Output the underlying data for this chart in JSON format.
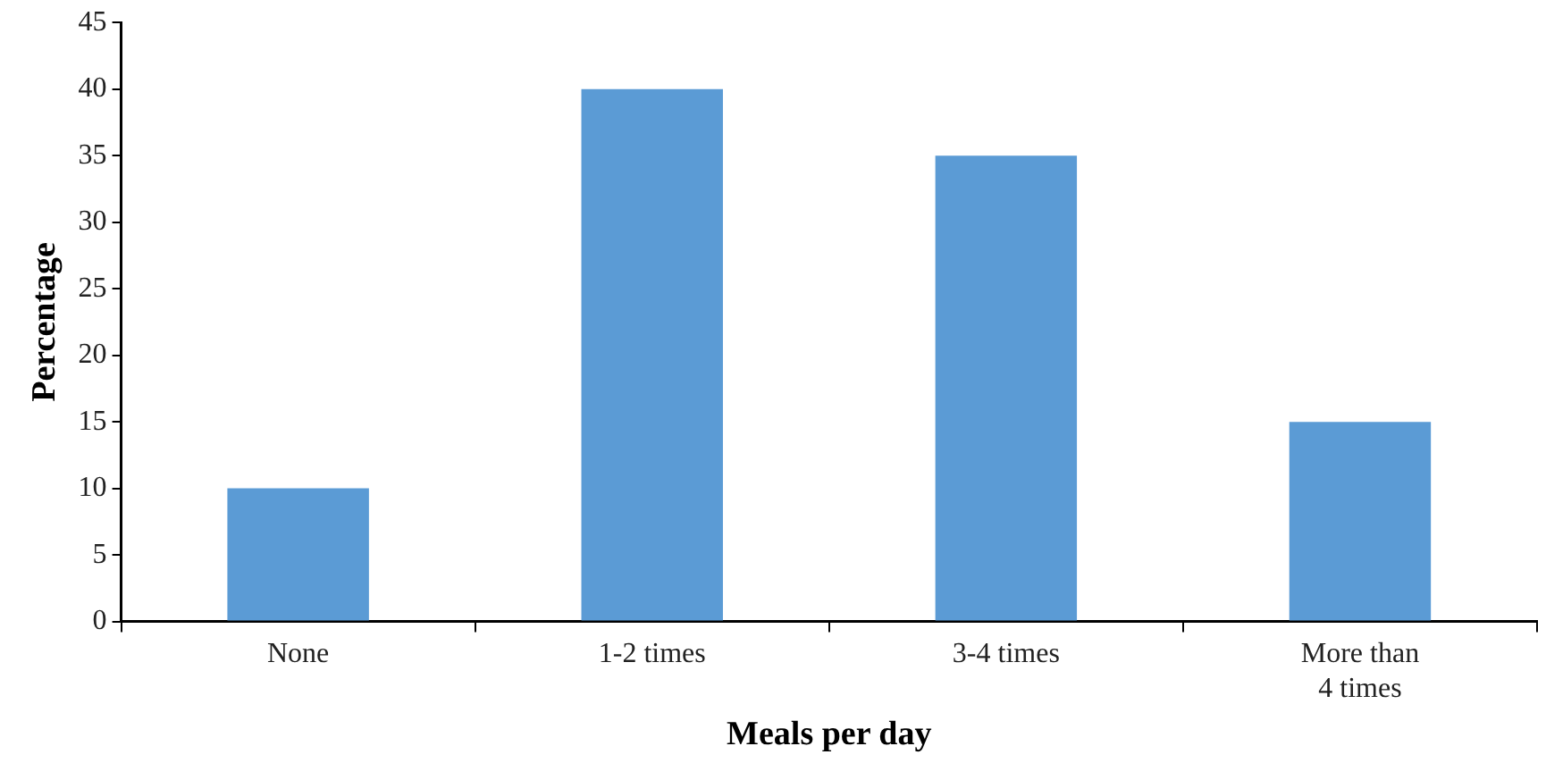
{
  "chart_data": {
    "type": "bar",
    "xlabel": "Meals per day",
    "ylabel": "Percentage",
    "categories": [
      "None",
      "1-2 times",
      "3-4 times",
      "More than 4 times"
    ],
    "values": [
      10,
      40,
      35,
      15
    ],
    "color": "#5b9bd5",
    "ylim": [
      0,
      45
    ],
    "yticks": [
      0,
      5,
      10,
      15,
      20,
      25,
      30,
      35,
      40,
      45
    ],
    "grid": false
  }
}
